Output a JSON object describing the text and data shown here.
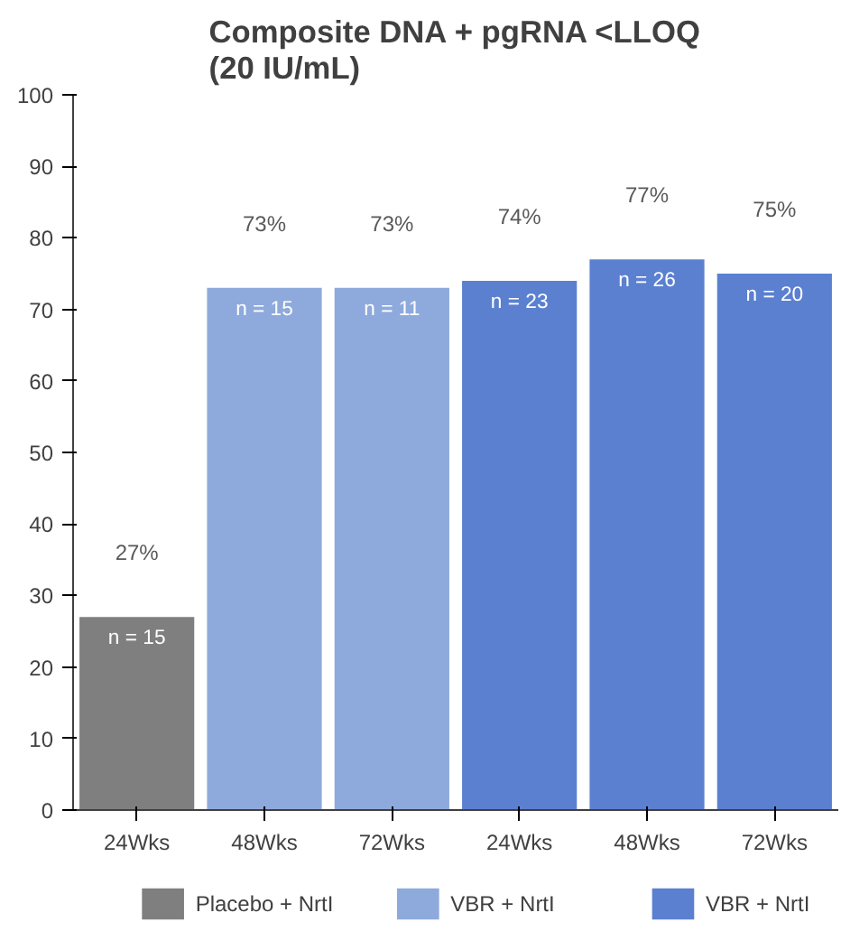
{
  "chart_data": {
    "type": "bar",
    "title": "Composite DNA + pgRNA <LLOQ\n(20 IU/mL)",
    "categories": [
      "24Wks",
      "48Wks",
      "72Wks",
      "24Wks",
      "48Wks",
      "72Wks"
    ],
    "series": [
      {
        "name": "Placebo + NrtI",
        "color": "#7f7f7f",
        "values": [
          27,
          null,
          null,
          null,
          null,
          null
        ],
        "value_labels": [
          "27%",
          null,
          null,
          null,
          null,
          null
        ]
      },
      {
        "name": "VBR + NrtI",
        "color": "#8eaadc",
        "values": [
          null,
          73,
          73,
          null,
          null,
          null
        ],
        "value_labels": [
          null,
          "73%",
          "73%",
          null,
          null,
          null
        ]
      },
      {
        "name": "VBR + NrtI",
        "color": "#5b80d0",
        "values": [
          null,
          null,
          null,
          74,
          77,
          75
        ],
        "value_labels": [
          null,
          null,
          null,
          "74%",
          "77%",
          "75%"
        ]
      }
    ],
    "annotations": [
      "n = 15",
      "n = 15",
      "n = 11",
      "n = 23",
      "n = 26",
      "n = 20"
    ],
    "ylim": [
      0,
      100
    ],
    "yticks": [
      0,
      10,
      20,
      30,
      40,
      50,
      60,
      70,
      80,
      90,
      100
    ],
    "grid": false,
    "legend": "bottom"
  }
}
